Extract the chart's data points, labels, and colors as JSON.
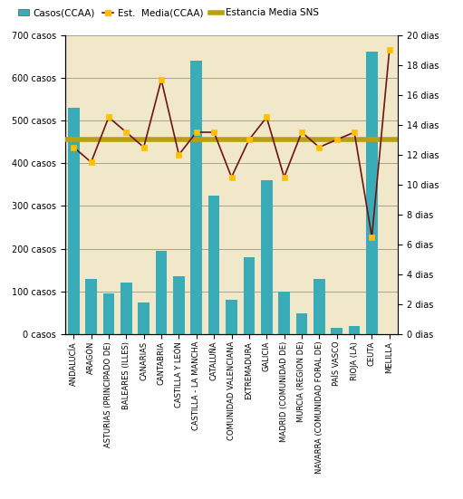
{
  "categories": [
    "ANDALUCÍA",
    "ARAGÓN",
    "ASTURIAS (PRINCIPADO DE)",
    "BALEARES (ILLES)",
    "CANARIAS",
    "CANTABRIA",
    "CASTILLA Y LEÓN",
    "CASTILLA - LA MANCHA",
    "CATALUÑA",
    "COMUNIDAD VALENCIANA",
    "EXTREMADURA",
    "GALICIA",
    "MADRID (COMUNIDAD DE)",
    "MURCIA (REGION DE)",
    "NAVARRA (COMUNIDAD FORAL DE)",
    "PAÍS VASCO",
    "RIOJA (LA)",
    "CEUTA",
    "MELILLA"
  ],
  "casos": [
    530,
    130,
    95,
    120,
    75,
    195,
    135,
    640,
    325,
    80,
    180,
    360,
    100,
    50,
    130,
    15,
    20,
    660,
    0
  ],
  "est_media": [
    12.5,
    11.5,
    14.5,
    13.5,
    12.5,
    17.0,
    12.0,
    13.5,
    13.5,
    10.5,
    13.0,
    14.5,
    10.5,
    13.5,
    12.5,
    13.0,
    13.5,
    6.5,
    19.0
  ],
  "estancia_media_sns": 13.0,
  "bar_color": "#3aacb8",
  "line_color": "#6b1414",
  "marker_facecolor": "#ffc000",
  "marker_edgecolor": "#ffc000",
  "sns_line_color": "#b8a010",
  "plot_bg_color": "#f0e8c8",
  "fig_bg_color": "#ffffff",
  "ylim_left": [
    0,
    700
  ],
  "ylim_right": [
    0,
    20
  ],
  "left_ticks": [
    0,
    100,
    200,
    300,
    400,
    500,
    600,
    700
  ],
  "right_ticks": [
    0,
    2,
    4,
    6,
    8,
    10,
    12,
    14,
    16,
    18,
    20
  ],
  "left_tick_labels": [
    "0 casos",
    "100 casos",
    "200 casos",
    "300 casos",
    "400 casos",
    "500 casos",
    "600 casos",
    "700 casos"
  ],
  "right_tick_labels": [
    "0 dias",
    "2 dias",
    "4 dias",
    "6 dias",
    "8 dias",
    "10 dias",
    "12 dias",
    "14 dias",
    "16 dias",
    "18 dias",
    "20 dias"
  ],
  "tick_fontsize": 7,
  "label_fontsize": 6,
  "legend_fontsize": 7.5
}
